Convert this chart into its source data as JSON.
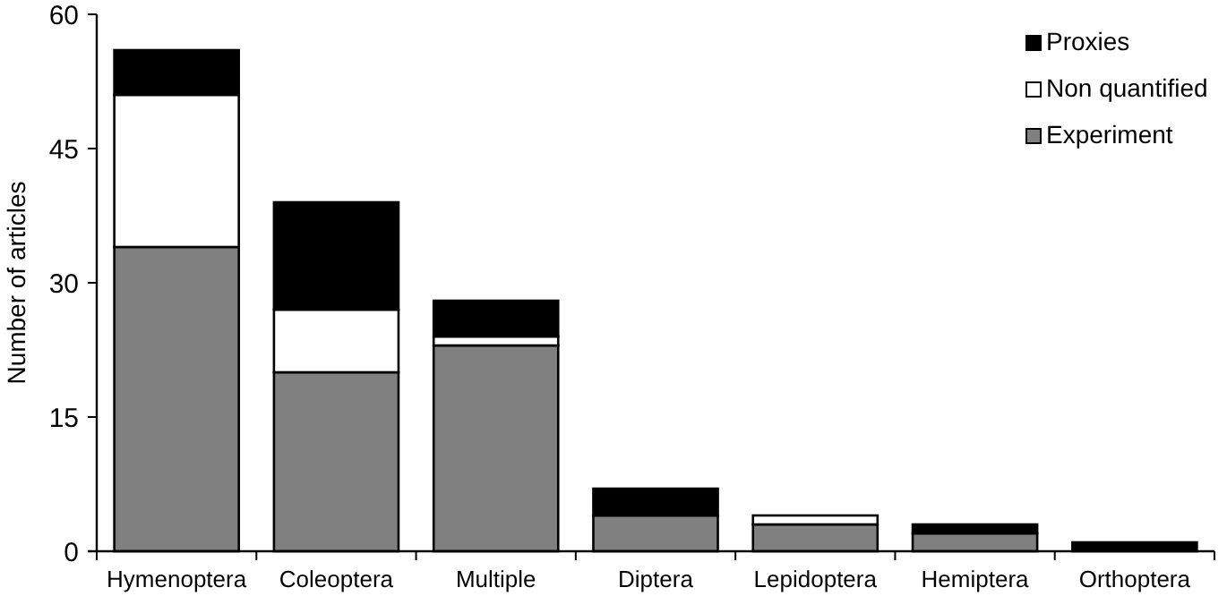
{
  "chart_data": {
    "type": "bar",
    "stacked": true,
    "ylabel": "Number of articles",
    "categories": [
      "Hymenoptera",
      "Coleoptera",
      "Multiple",
      "Diptera",
      "Lepidoptera",
      "Hemiptera",
      "Orthoptera"
    ],
    "series": [
      {
        "name": "Experiment",
        "color": "#808080",
        "values": [
          34,
          20,
          23,
          4,
          3,
          2,
          0
        ]
      },
      {
        "name": "Non quantified",
        "color": "#ffffff",
        "values": [
          17,
          7,
          1,
          0,
          1,
          0,
          0
        ]
      },
      {
        "name": "Proxies",
        "color": "#000000",
        "values": [
          5,
          12,
          4,
          3,
          0,
          1,
          1
        ]
      }
    ],
    "ylim": [
      0,
      60
    ],
    "yticks": [
      0,
      15,
      30,
      45,
      60
    ],
    "grid": false,
    "legend": "top right"
  }
}
